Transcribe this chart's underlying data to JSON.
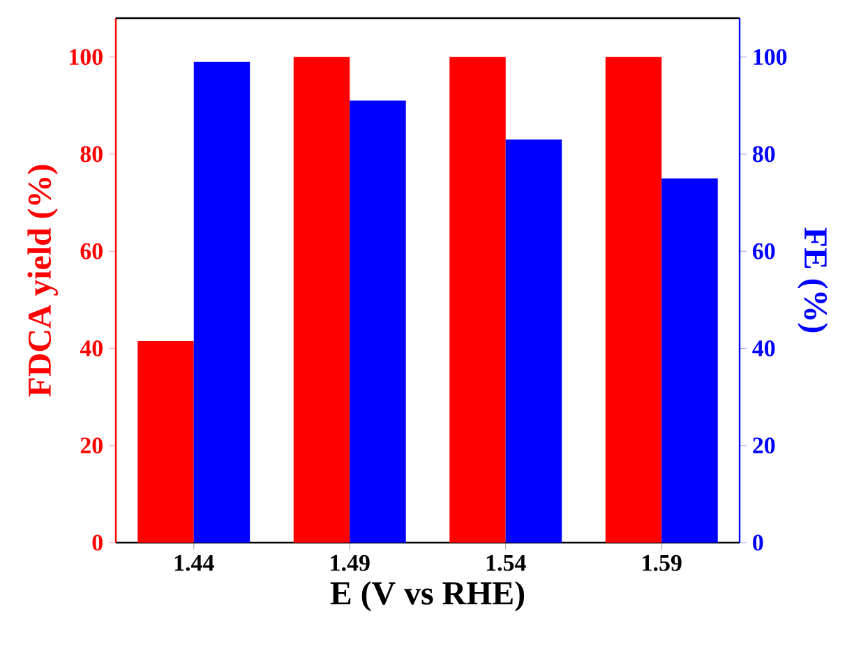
{
  "chart_data": {
    "type": "bar",
    "categories": [
      "1.44",
      "1.49",
      "1.54",
      "1.59"
    ],
    "xlabel": "E (V vs RHE)",
    "ylabel": "FDCA yield (%)",
    "y2label": "FE (%)",
    "ylim": [
      0,
      108
    ],
    "yticks": [
      0,
      20,
      40,
      60,
      80,
      100
    ],
    "y2lim": [
      0,
      108
    ],
    "y2ticks": [
      0,
      20,
      40,
      60,
      80,
      100
    ],
    "series": [
      {
        "color": "#ff0000",
        "axis": "y",
        "values": [
          41.5,
          100,
          100,
          100
        ]
      },
      {
        "color": "#0000ff",
        "axis": "y2",
        "values": [
          99,
          91,
          83,
          75
        ]
      }
    ]
  }
}
